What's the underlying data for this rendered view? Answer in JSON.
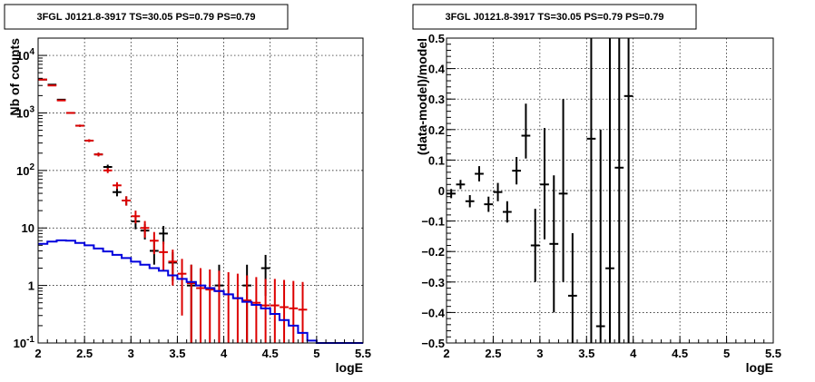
{
  "chart_data": [
    {
      "type": "line",
      "title": "3FGL J0121.8-3917 TS=30.05 PS=0.79 PS=0.79",
      "xlabel": "logE",
      "ylabel": "Nb of counts",
      "xlim": [
        2,
        5.5
      ],
      "ylim": [
        0.1,
        20000
      ],
      "yscale": "log",
      "grid": true,
      "x_ticks": [
        "2",
        "2.5",
        "3",
        "3.5",
        "4",
        "4.5",
        "5",
        "5.5"
      ],
      "y_ticks": [
        {
          "value": 0.1,
          "base": "10",
          "exp": "-1"
        },
        {
          "value": 1,
          "base": "1",
          "exp": ""
        },
        {
          "value": 10,
          "base": "10",
          "exp": ""
        },
        {
          "value": 100,
          "base": "10",
          "exp": "2"
        },
        {
          "value": 1000,
          "base": "10",
          "exp": "3"
        },
        {
          "value": 10000,
          "base": "10",
          "exp": "4"
        }
      ],
      "series": [
        {
          "color": "#000000",
          "style": "errorbar",
          "x": [
            2.05,
            2.15,
            2.25,
            2.35,
            2.45,
            2.55,
            2.65,
            2.75,
            2.85,
            2.95,
            3.05,
            3.15,
            3.25,
            3.35,
            3.45,
            3.55,
            3.65,
            3.75,
            3.85,
            3.95,
            4.05,
            4.15,
            4.25,
            4.35,
            4.45,
            4.55,
            4.65
          ],
          "y": [
            3800,
            3100,
            1700,
            1000,
            600,
            330,
            190,
            115,
            42,
            30,
            13,
            9,
            4,
            8,
            2.5,
            1,
            1,
            1,
            1,
            1,
            1,
            1,
            1,
            1,
            2,
            1,
            1
          ],
          "ylo": [
            3740,
            3040,
            1660,
            970,
            575,
            312,
            176,
            104,
            35.5,
            24.5,
            9.5,
            6.3,
            2.3,
            5.2,
            1.2,
            0.1,
            0.1,
            0.1,
            0.1,
            0.1,
            0.1,
            0.1,
            0.1,
            0.1,
            0.66,
            0.1,
            0.1
          ],
          "yhi": [
            3860,
            3160,
            1740,
            1030,
            625,
            348,
            204,
            126,
            48.5,
            35.5,
            16.5,
            11.7,
            5.7,
            10.8,
            3.8,
            2.3,
            2.3,
            2.3,
            2.3,
            2.3,
            2.3,
            2.3,
            2.3,
            2.3,
            3.4,
            2.3,
            2.3
          ],
          "show": [
            true,
            true,
            true,
            true,
            true,
            true,
            true,
            true,
            true,
            true,
            true,
            true,
            true,
            true,
            true,
            false,
            true,
            false,
            false,
            true,
            false,
            false,
            true,
            false,
            true,
            false,
            false
          ]
        },
        {
          "color": "#dd0000",
          "style": "errorbar",
          "x": [
            2.05,
            2.15,
            2.25,
            2.35,
            2.45,
            2.55,
            2.65,
            2.75,
            2.85,
            2.95,
            3.05,
            3.15,
            3.25,
            3.35,
            3.45,
            3.55,
            3.65,
            3.75,
            3.85,
            3.95,
            4.05,
            4.15,
            4.25,
            4.35,
            4.45,
            4.55,
            4.65,
            4.75,
            4.85
          ],
          "y": [
            3800,
            3000,
            1650,
            1000,
            600,
            330,
            190,
            100,
            55,
            30,
            16,
            10,
            6,
            3.8,
            2.6,
            1.6,
            1.1,
            0.9,
            0.85,
            0.8,
            0.7,
            0.6,
            0.55,
            0.5,
            0.45,
            0.45,
            0.42,
            0.4,
            0.38
          ],
          "ylo": [
            3740,
            2945,
            1610,
            968,
            575,
            312,
            176,
            90,
            47.5,
            24.5,
            12,
            6.8,
            3.5,
            1.8,
            1.0,
            0.3,
            0.1,
            0.1,
            0.1,
            0.1,
            0.1,
            0.1,
            0.1,
            0.1,
            0.1,
            0.1,
            0.1,
            0.1,
            0.1
          ],
          "yhi": [
            3860,
            3055,
            1690,
            1032,
            625,
            348,
            204,
            110,
            62.5,
            35.5,
            20,
            13.2,
            8.5,
            5.8,
            4.2,
            2.9,
            2.3,
            2.0,
            1.9,
            1.8,
            1.7,
            1.6,
            1.5,
            1.4,
            1.3,
            1.3,
            1.25,
            1.2,
            1.15
          ]
        },
        {
          "color": "#0000dd",
          "style": "step",
          "edges": [
            2.0,
            2.1,
            2.2,
            2.3,
            2.4,
            2.5,
            2.6,
            2.7,
            2.8,
            2.9,
            3.0,
            3.1,
            3.2,
            3.3,
            3.4,
            3.5,
            3.6,
            3.7,
            3.8,
            3.9,
            4.0,
            4.1,
            4.2,
            4.3,
            4.4,
            4.5,
            4.6,
            4.7,
            4.8,
            4.9,
            5.0,
            5.1,
            5.2,
            5.3,
            5.4,
            5.5
          ],
          "values": [
            5.3,
            5.8,
            6.1,
            6.0,
            5.5,
            5.0,
            4.4,
            3.9,
            3.4,
            3.0,
            2.6,
            2.3,
            2.0,
            1.8,
            1.5,
            1.3,
            1.15,
            1.0,
            0.9,
            0.8,
            0.7,
            0.6,
            0.52,
            0.46,
            0.4,
            0.32,
            0.25,
            0.2,
            0.15,
            0.11,
            0.1,
            0.1,
            0.1,
            0.1,
            0.1
          ]
        }
      ]
    },
    {
      "type": "scatter",
      "title": "3FGL J0121.8-3917 TS=30.05 PS=0.79 PS=0.79",
      "xlabel": "logE",
      "ylabel": "(data-model)/model",
      "xlim": [
        2,
        5.5
      ],
      "ylim": [
        -0.5,
        0.5
      ],
      "grid": true,
      "x_ticks": [
        "2",
        "2.5",
        "3",
        "3.5",
        "4",
        "4.5",
        "5",
        "5.5"
      ],
      "y_ticks": [
        "−0.5",
        "−0.4",
        "−0.3",
        "−0.2",
        "−0.1",
        "0",
        "0.1",
        "0.2",
        "0.3",
        "0.4",
        "0.5"
      ],
      "series": [
        {
          "color": "#000000",
          "style": "errorbar",
          "x": [
            2.05,
            2.15,
            2.25,
            2.35,
            2.45,
            2.55,
            2.65,
            2.75,
            2.85,
            2.95,
            3.05,
            3.15,
            3.25,
            3.35,
            3.55,
            3.65,
            3.75,
            3.85,
            3.95
          ],
          "y": [
            -0.01,
            0.02,
            -0.035,
            0.055,
            -0.045,
            -0.005,
            -0.07,
            0.065,
            0.18,
            -0.18,
            0.02,
            -0.175,
            -0.01,
            -0.345,
            0.17,
            -0.445,
            -0.255,
            0.075,
            0.31
          ],
          "ylo": [
            -0.025,
            0.005,
            -0.055,
            0.03,
            -0.07,
            -0.035,
            -0.105,
            0.02,
            0.105,
            -0.3,
            -0.16,
            -0.4,
            -0.3,
            -0.55,
            -0.55,
            -0.55,
            -0.55,
            -0.55,
            -0.55
          ],
          "yhi": [
            0.005,
            0.035,
            -0.015,
            0.08,
            -0.02,
            0.025,
            -0.035,
            0.11,
            0.285,
            -0.06,
            0.205,
            0.05,
            0.3,
            -0.14,
            0.55,
            0.2,
            0.55,
            0.55,
            0.55
          ]
        }
      ]
    }
  ]
}
